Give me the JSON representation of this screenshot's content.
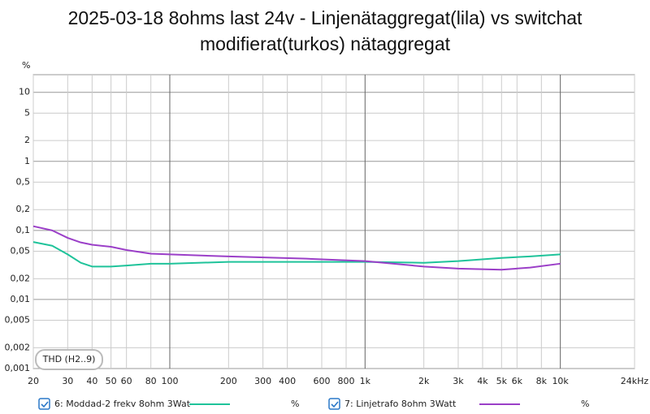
{
  "chart_data": {
    "type": "line",
    "title": "2025-03-18 8ohms last 24v - Linjenätaggregat(lila) vs switchat modifierat(turkos) nätaggregat",
    "y_unit": "%",
    "legend_box": "THD (H2..9)",
    "x": [
      20,
      25,
      30,
      35,
      40,
      50,
      60,
      80,
      100,
      200,
      500,
      1000,
      2000,
      3000,
      5000,
      7000,
      10000
    ],
    "series": [
      {
        "name": "6: Moddad-2 frekv 8ohm 3Wat",
        "unit": "%",
        "color": "#1fc39a",
        "values": [
          0.068,
          0.06,
          0.045,
          0.034,
          0.03,
          0.03,
          0.031,
          0.033,
          0.033,
          0.035,
          0.035,
          0.035,
          0.034,
          0.036,
          0.04,
          0.042,
          0.045
        ]
      },
      {
        "name": "7: Linjetrafo 8ohm 3Watt",
        "unit": "%",
        "color": "#9b3fc8",
        "values": [
          0.115,
          0.1,
          0.078,
          0.067,
          0.062,
          0.058,
          0.052,
          0.046,
          0.045,
          0.042,
          0.039,
          0.036,
          0.03,
          0.028,
          0.027,
          0.029,
          0.033
        ]
      }
    ],
    "xscale": "log",
    "yscale": "log",
    "grid": true,
    "xlim": [
      20,
      24000
    ],
    "ylim": [
      0.001,
      18
    ],
    "xticks": [
      20,
      30,
      40,
      50,
      60,
      80,
      100,
      200,
      300,
      400,
      600,
      800,
      {
        "value": 1000,
        "label": "1k"
      },
      {
        "value": 2000,
        "label": "2k"
      },
      {
        "value": 3000,
        "label": "3k"
      },
      {
        "value": 4000,
        "label": "4k"
      },
      {
        "value": 5000,
        "label": "5k"
      },
      {
        "value": 6000,
        "label": "6k"
      },
      {
        "value": 8000,
        "label": "8k"
      },
      {
        "value": 10000,
        "label": "10k"
      },
      {
        "value": 24000,
        "label": "24kHz"
      }
    ],
    "yticks": [
      10,
      5,
      2,
      1,
      {
        "value": 0.5,
        "label": "0,5"
      },
      {
        "value": 0.2,
        "label": "0,2"
      },
      {
        "value": 0.1,
        "label": "0,1"
      },
      {
        "value": 0.05,
        "label": "0,05"
      },
      {
        "value": 0.02,
        "label": "0,02"
      },
      {
        "value": 0.01,
        "label": "0,01"
      },
      {
        "value": 0.005,
        "label": "0,005"
      },
      {
        "value": 0.002,
        "label": "0,002"
      },
      {
        "value": 0.001,
        "label": "0,001"
      }
    ]
  }
}
